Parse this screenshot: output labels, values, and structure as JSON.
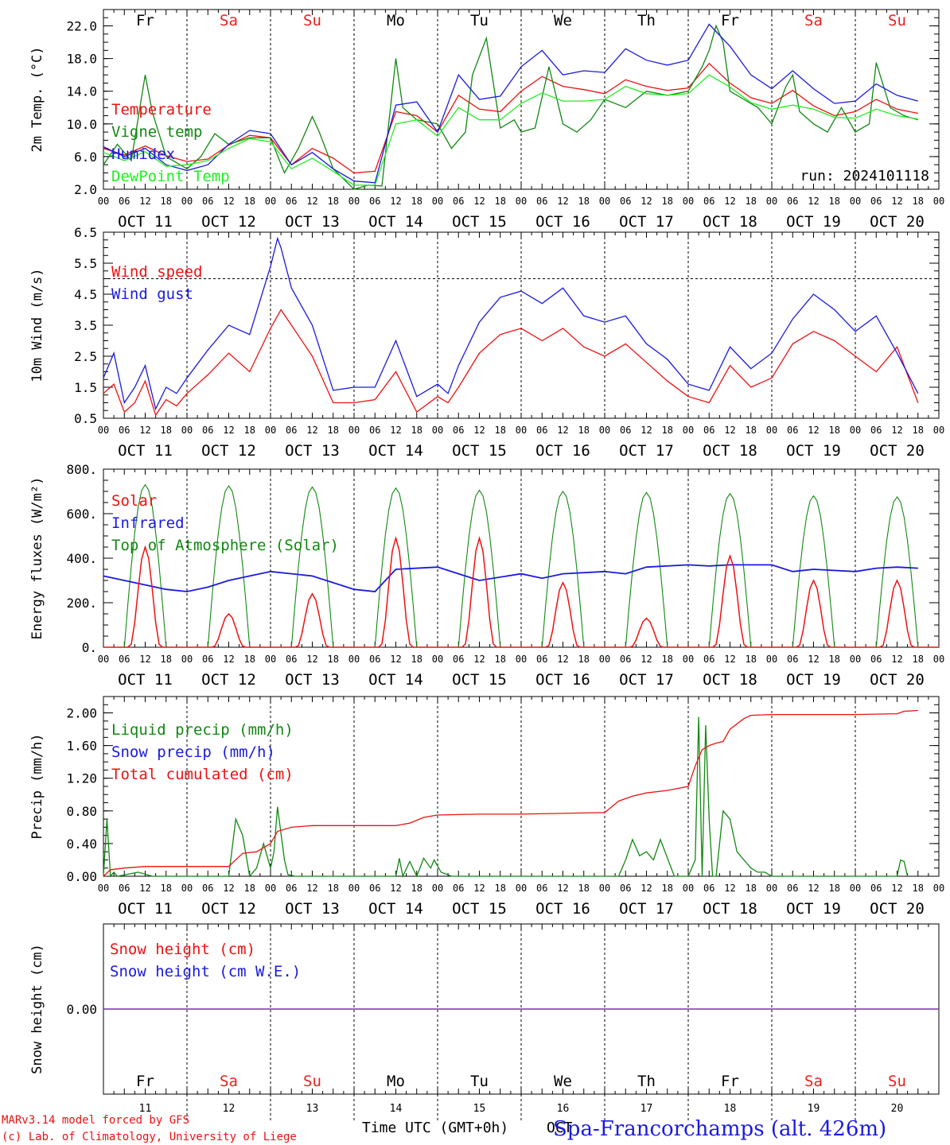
{
  "days": {
    "weekdays": [
      "Fr",
      "Sa",
      "Su",
      "Mo",
      "Tu",
      "We",
      "Th",
      "Fr",
      "Sa",
      "Su"
    ],
    "weekend_flags": [
      false,
      true,
      true,
      false,
      false,
      false,
      false,
      false,
      true,
      true
    ],
    "dates": [
      "OCT 11",
      "OCT 12",
      "OCT 13",
      "OCT 14",
      "OCT 15",
      "OCT 16",
      "OCT 17",
      "OCT 18",
      "OCT 19",
      "OCT 20"
    ],
    "day_numbers": [
      "11",
      "12",
      "13",
      "14",
      "15",
      "16",
      "17",
      "18",
      "19",
      "20"
    ],
    "hour_labels": [
      "00",
      "06",
      "12",
      "18"
    ],
    "final_hour_label": "00"
  },
  "colors": {
    "weekday": "#000000",
    "weekend": "#e8201e",
    "red": "#ee1111",
    "green": "#118811",
    "blue": "#1a1ae0",
    "lightgreen": "#22ee22",
    "purple": "#7733aa"
  },
  "footer": {
    "model": "MARv3.14 model forced by GFS",
    "credit": "(c) Lab. of Climatology, University of Liege",
    "time_label": "Time UTC (GMT+0h)",
    "oct_label": "OCT",
    "location": "Spa-Francorchamps (alt. 426m)"
  },
  "chart_data": [
    {
      "type": "line",
      "ylabel": "2m Temp. (°C)",
      "ylim": [
        2.0,
        24.0
      ],
      "yticks": [
        2.0,
        6.0,
        10.0,
        14.0,
        18.0,
        22.0
      ],
      "ytick_labels": [
        "2.0",
        "6.0",
        "10.0",
        "14.0",
        "18.0",
        "22.0"
      ],
      "annotation": "run: 2024101118",
      "series": [
        {
          "name": "Temperature",
          "color": "red",
          "x_hours": [
            0,
            6,
            12,
            18,
            24,
            30,
            36,
            42,
            48,
            54,
            60,
            66,
            72,
            78,
            84,
            90,
            96,
            102,
            108,
            114,
            120,
            126,
            132,
            138,
            144,
            150,
            156,
            162,
            168,
            174,
            180,
            186,
            192,
            198,
            204,
            210,
            216,
            222,
            228,
            234
          ],
          "values": [
            7.0,
            6.2,
            7.3,
            6.1,
            5.4,
            5.7,
            7.4,
            8.6,
            8.3,
            5.0,
            7.0,
            5.8,
            4.0,
            4.2,
            11.5,
            11.0,
            9.0,
            13.5,
            11.8,
            11.5,
            14.0,
            15.8,
            14.6,
            14.2,
            13.7,
            15.4,
            14.6,
            14.1,
            14.4,
            17.4,
            15.0,
            13.2,
            12.5,
            14.1,
            12.2,
            11.0,
            11.5,
            13.0,
            11.8,
            11.3
          ]
        },
        {
          "name": "Vigne temp",
          "color": "green",
          "x_hours": [
            0,
            4,
            8,
            12,
            14,
            18,
            24,
            28,
            32,
            36,
            42,
            48,
            52,
            56,
            60,
            62,
            66,
            72,
            76,
            80,
            84,
            86,
            90,
            96,
            100,
            104,
            106,
            110,
            114,
            118,
            120,
            124,
            128,
            132,
            136,
            140,
            144,
            150,
            156,
            162,
            168,
            172,
            174,
            176,
            178,
            180,
            184,
            188,
            190,
            192,
            196,
            198,
            200,
            204,
            208,
            212,
            216,
            220,
            222,
            226,
            230,
            234
          ],
          "values": [
            5.0,
            7.5,
            5.5,
            16.0,
            11.5,
            6.0,
            4.5,
            6.0,
            8.8,
            7.5,
            8.3,
            8.3,
            4.0,
            7.0,
            10.9,
            9.0,
            4.5,
            2.0,
            2.5,
            2.4,
            18.0,
            12.0,
            10.5,
            10.0,
            7.0,
            9.0,
            16.0,
            20.5,
            9.5,
            10.5,
            9.0,
            9.5,
            17.0,
            10.0,
            9.0,
            10.5,
            13.0,
            12.0,
            14.0,
            13.5,
            14.0,
            17.0,
            19.0,
            22.0,
            20.0,
            14.0,
            13.0,
            12.0,
            11.0,
            10.0,
            14.5,
            16.0,
            11.5,
            10.0,
            9.0,
            12.0,
            9.0,
            10.0,
            17.5,
            12.0,
            11.0,
            10.5
          ]
        },
        {
          "name": "Humidex",
          "color": "blue",
          "x_hours": [
            0,
            6,
            12,
            18,
            24,
            30,
            36,
            42,
            48,
            54,
            60,
            66,
            72,
            78,
            84,
            90,
            96,
            102,
            108,
            114,
            120,
            126,
            132,
            138,
            144,
            150,
            156,
            162,
            168,
            174,
            180,
            186,
            192,
            198,
            204,
            210,
            216,
            222,
            228,
            234
          ],
          "values": [
            7.2,
            6.0,
            7.0,
            5.0,
            4.3,
            5.0,
            7.5,
            9.2,
            8.8,
            5.0,
            6.5,
            4.5,
            3.0,
            2.8,
            12.3,
            12.7,
            9.0,
            16.0,
            13.0,
            13.4,
            17.0,
            19.0,
            16.0,
            16.5,
            16.3,
            19.2,
            17.8,
            17.2,
            17.8,
            22.2,
            19.5,
            16.0,
            14.3,
            16.5,
            14.3,
            12.5,
            12.8,
            14.9,
            13.5,
            12.8
          ]
        },
        {
          "name": "DewPoint Temp",
          "color": "lightgreen",
          "x_hours": [
            0,
            6,
            12,
            18,
            24,
            30,
            36,
            42,
            48,
            54,
            60,
            66,
            72,
            78,
            84,
            90,
            96,
            102,
            108,
            114,
            120,
            126,
            132,
            138,
            144,
            150,
            156,
            162,
            168,
            174,
            180,
            186,
            192,
            198,
            204,
            210,
            216,
            222,
            228,
            234
          ],
          "values": [
            6.5,
            5.5,
            6.6,
            4.8,
            5.0,
            5.5,
            7.0,
            8.2,
            7.8,
            4.5,
            5.8,
            4.2,
            2.5,
            2.5,
            10.0,
            10.5,
            8.5,
            12.0,
            10.5,
            10.5,
            12.5,
            13.8,
            12.8,
            12.8,
            13.0,
            14.6,
            13.7,
            13.5,
            13.7,
            16.0,
            14.5,
            12.6,
            11.8,
            12.3,
            11.8,
            10.8,
            10.7,
            11.8,
            11.0,
            10.6
          ]
        }
      ]
    },
    {
      "type": "line",
      "ylabel": "10m Wind (m/s)",
      "ylim": [
        0.5,
        6.5
      ],
      "yticks": [
        0.5,
        1.5,
        2.5,
        3.5,
        4.5,
        5.5,
        6.5
      ],
      "ytick_labels": [
        "0.5",
        "1.5",
        "2.5",
        "3.5",
        "4.5",
        "5.5",
        "6.5"
      ],
      "reference_line": 5.0,
      "series": [
        {
          "name": "Wind speed",
          "color": "red",
          "x_hours": [
            0,
            3,
            6,
            9,
            12,
            15,
            18,
            21,
            24,
            30,
            36,
            42,
            48,
            51,
            54,
            60,
            66,
            72,
            78,
            84,
            90,
            96,
            99,
            102,
            108,
            114,
            120,
            126,
            132,
            138,
            144,
            150,
            156,
            162,
            168,
            174,
            180,
            186,
            192,
            198,
            204,
            210,
            216,
            222,
            228,
            234
          ],
          "values": [
            1.3,
            1.6,
            0.7,
            1.0,
            1.7,
            0.6,
            1.1,
            0.9,
            1.3,
            1.9,
            2.6,
            2.0,
            3.4,
            4.0,
            3.5,
            2.5,
            1.0,
            1.0,
            1.1,
            2.0,
            0.7,
            1.2,
            1.0,
            1.5,
            2.6,
            3.2,
            3.4,
            3.0,
            3.4,
            2.8,
            2.5,
            2.9,
            2.3,
            1.7,
            1.2,
            1.0,
            2.2,
            1.5,
            1.8,
            2.9,
            3.3,
            3.0,
            2.5,
            2.0,
            2.8,
            1.0
          ]
        },
        {
          "name": "Wind gust",
          "color": "blue",
          "x_hours": [
            0,
            3,
            6,
            9,
            12,
            15,
            18,
            21,
            24,
            30,
            36,
            42,
            48,
            50,
            51,
            54,
            60,
            66,
            72,
            78,
            84,
            90,
            96,
            99,
            102,
            108,
            114,
            120,
            126,
            132,
            138,
            144,
            150,
            156,
            162,
            168,
            174,
            180,
            186,
            192,
            198,
            204,
            210,
            216,
            222,
            228,
            234
          ],
          "values": [
            1.8,
            2.6,
            1.0,
            1.5,
            2.2,
            0.8,
            1.5,
            1.3,
            1.8,
            2.7,
            3.5,
            3.2,
            5.4,
            6.3,
            6.0,
            4.7,
            3.5,
            1.4,
            1.5,
            1.5,
            3.0,
            1.2,
            1.6,
            1.3,
            2.2,
            3.6,
            4.4,
            4.6,
            4.2,
            4.7,
            3.8,
            3.6,
            3.8,
            2.9,
            2.4,
            1.6,
            1.4,
            2.8,
            2.1,
            2.6,
            3.7,
            4.5,
            4.0,
            3.3,
            3.8,
            2.6,
            1.3
          ]
        }
      ]
    },
    {
      "type": "line",
      "ylabel": "Energy fluxes (W/m²)",
      "ylim": [
        0,
        800
      ],
      "yticks": [
        0,
        200,
        400,
        600,
        800
      ],
      "ytick_labels": [
        "0.",
        "200.",
        "400.",
        "600.",
        "800."
      ],
      "solar_peaks": [
        450,
        150,
        240,
        490,
        490,
        290,
        130,
        410,
        300,
        300
      ],
      "toa_peaks": [
        730,
        725,
        720,
        715,
        705,
        700,
        695,
        690,
        680,
        675
      ],
      "series": [
        {
          "name": "Solar",
          "color": "red"
        },
        {
          "name": "Infrared",
          "color": "blue",
          "x_hours": [
            0,
            6,
            12,
            18,
            24,
            30,
            36,
            48,
            60,
            72,
            78,
            84,
            96,
            102,
            108,
            120,
            126,
            132,
            144,
            150,
            156,
            168,
            174,
            180,
            192,
            198,
            204,
            216,
            222,
            228,
            234
          ],
          "values": [
            320,
            300,
            280,
            260,
            250,
            270,
            300,
            340,
            320,
            260,
            250,
            350,
            360,
            330,
            300,
            330,
            310,
            330,
            340,
            330,
            360,
            370,
            365,
            370,
            370,
            340,
            350,
            340,
            355,
            360,
            355
          ]
        },
        {
          "name": "Top of Atmosphere (Solar)",
          "color": "green"
        }
      ]
    },
    {
      "type": "line",
      "ylabel": "Precip (mm/h)",
      "ylim": [
        0.0,
        2.2
      ],
      "yticks": [
        0.0,
        0.4,
        0.8,
        1.2,
        1.6,
        2.0
      ],
      "ytick_labels": [
        "0.00",
        "0.40",
        "0.80",
        "1.20",
        "1.60",
        "2.00"
      ],
      "series": [
        {
          "name": "Liquid precip (mm/h)",
          "color": "green",
          "x_hours": [
            0,
            1,
            2,
            3,
            4,
            10,
            14,
            36,
            38,
            40,
            42,
            44,
            46,
            48,
            49,
            50,
            52,
            53,
            55,
            60,
            84,
            85,
            86,
            88,
            90,
            92,
            94,
            95,
            97,
            100,
            104,
            148,
            150,
            152,
            154,
            156,
            158,
            160,
            164,
            168,
            170,
            171,
            172,
            173,
            174,
            175,
            176,
            178,
            180,
            182,
            184,
            186,
            188,
            190,
            192,
            196,
            200,
            228,
            229,
            230,
            231
          ],
          "values": [
            0.0,
            0.7,
            0.0,
            0.05,
            0.0,
            0.05,
            0.0,
            0.0,
            0.7,
            0.5,
            0.0,
            0.1,
            0.4,
            0.1,
            0.3,
            0.85,
            0.2,
            0.02,
            0.0,
            0.0,
            0.0,
            0.22,
            0.0,
            0.18,
            0.0,
            0.22,
            0.1,
            0.2,
            0.05,
            0.0,
            0.0,
            0.0,
            0.2,
            0.45,
            0.25,
            0.3,
            0.2,
            0.45,
            0.0,
            0.0,
            0.2,
            1.95,
            0.0,
            1.85,
            0.7,
            0.0,
            0.0,
            0.8,
            0.7,
            0.3,
            0.2,
            0.1,
            0.05,
            0.05,
            0.0,
            0.0,
            0.0,
            0.0,
            0.2,
            0.18,
            0.0
          ]
        },
        {
          "name": "Snow precip (mm/h)",
          "color": "blue"
        },
        {
          "name": "Total cumulated (cm)",
          "color": "red",
          "x_hours": [
            0,
            2,
            6,
            12,
            24,
            36,
            40,
            44,
            48,
            50,
            54,
            60,
            72,
            84,
            88,
            92,
            96,
            108,
            120,
            144,
            148,
            152,
            156,
            162,
            168,
            170,
            172,
            174,
            176,
            178,
            180,
            184,
            186,
            192,
            204,
            216,
            228,
            230,
            234
          ],
          "values": [
            0.0,
            0.08,
            0.1,
            0.12,
            0.12,
            0.12,
            0.28,
            0.3,
            0.4,
            0.55,
            0.6,
            0.62,
            0.62,
            0.62,
            0.65,
            0.72,
            0.75,
            0.76,
            0.76,
            0.78,
            0.92,
            0.98,
            1.02,
            1.05,
            1.1,
            1.35,
            1.55,
            1.6,
            1.63,
            1.65,
            1.8,
            1.93,
            1.97,
            1.98,
            1.98,
            1.98,
            1.99,
            2.02,
            2.03
          ]
        }
      ]
    },
    {
      "type": "line",
      "ylabel": "Snow height (cm)",
      "ylim": [
        -1.0,
        1.0
      ],
      "yticks": [
        0.0
      ],
      "ytick_labels": [
        "0.00"
      ],
      "series": [
        {
          "name": "Snow height (cm)",
          "color": "red",
          "x_hours": [
            0,
            240
          ],
          "values": [
            0,
            0
          ]
        },
        {
          "name": "Snow height (cm W.E.)",
          "color": "blue",
          "x_hours": [
            0,
            240
          ],
          "values": [
            0,
            0
          ]
        }
      ]
    }
  ]
}
